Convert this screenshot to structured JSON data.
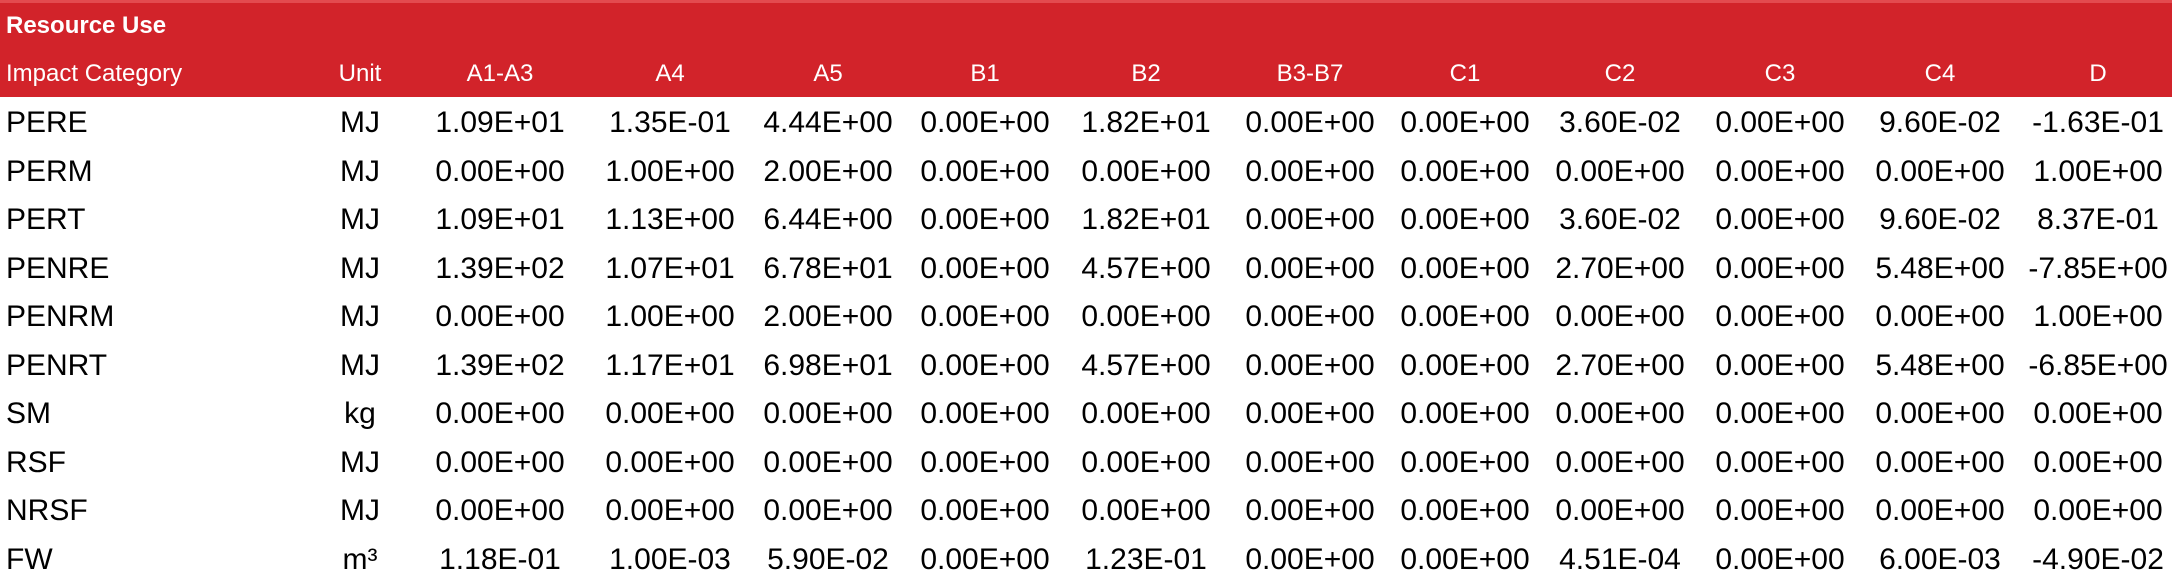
{
  "section_title": "Resource Use",
  "headers": [
    "Impact Category",
    "Unit",
    "A1-A3",
    "A4",
    "A5",
    "B1",
    "B2",
    "B3-B7",
    "C1",
    "C2",
    "C3",
    "C4",
    "D"
  ],
  "rows": [
    {
      "name": "PERE",
      "unit": "MJ",
      "values": [
        "1.09E+01",
        "1.35E-01",
        "4.44E+00",
        "0.00E+00",
        "1.82E+01",
        "0.00E+00",
        "0.00E+00",
        "3.60E-02",
        "0.00E+00",
        "9.60E-02",
        "-1.63E-01"
      ]
    },
    {
      "name": "PERM",
      "unit": "MJ",
      "values": [
        "0.00E+00",
        "1.00E+00",
        "2.00E+00",
        "0.00E+00",
        "0.00E+00",
        "0.00E+00",
        "0.00E+00",
        "0.00E+00",
        "0.00E+00",
        "0.00E+00",
        "1.00E+00"
      ]
    },
    {
      "name": "PERT",
      "unit": "MJ",
      "values": [
        "1.09E+01",
        "1.13E+00",
        "6.44E+00",
        "0.00E+00",
        "1.82E+01",
        "0.00E+00",
        "0.00E+00",
        "3.60E-02",
        "0.00E+00",
        "9.60E-02",
        "8.37E-01"
      ]
    },
    {
      "name": "PENRE",
      "unit": "MJ",
      "values": [
        "1.39E+02",
        "1.07E+01",
        "6.78E+01",
        "0.00E+00",
        "4.57E+00",
        "0.00E+00",
        "0.00E+00",
        "2.70E+00",
        "0.00E+00",
        "5.48E+00",
        "-7.85E+00"
      ]
    },
    {
      "name": "PENRM",
      "unit": "MJ",
      "values": [
        "0.00E+00",
        "1.00E+00",
        "2.00E+00",
        "0.00E+00",
        "0.00E+00",
        "0.00E+00",
        "0.00E+00",
        "0.00E+00",
        "0.00E+00",
        "0.00E+00",
        "1.00E+00"
      ]
    },
    {
      "name": "PENRT",
      "unit": "MJ",
      "values": [
        "1.39E+02",
        "1.17E+01",
        "6.98E+01",
        "0.00E+00",
        "4.57E+00",
        "0.00E+00",
        "0.00E+00",
        "2.70E+00",
        "0.00E+00",
        "5.48E+00",
        "-6.85E+00"
      ]
    },
    {
      "name": "SM",
      "unit": "kg",
      "values": [
        "0.00E+00",
        "0.00E+00",
        "0.00E+00",
        "0.00E+00",
        "0.00E+00",
        "0.00E+00",
        "0.00E+00",
        "0.00E+00",
        "0.00E+00",
        "0.00E+00",
        "0.00E+00"
      ]
    },
    {
      "name": "RSF",
      "unit": "MJ",
      "values": [
        "0.00E+00",
        "0.00E+00",
        "0.00E+00",
        "0.00E+00",
        "0.00E+00",
        "0.00E+00",
        "0.00E+00",
        "0.00E+00",
        "0.00E+00",
        "0.00E+00",
        "0.00E+00"
      ]
    },
    {
      "name": "NRSF",
      "unit": "MJ",
      "values": [
        "0.00E+00",
        "0.00E+00",
        "0.00E+00",
        "0.00E+00",
        "0.00E+00",
        "0.00E+00",
        "0.00E+00",
        "0.00E+00",
        "0.00E+00",
        "0.00E+00",
        "0.00E+00"
      ]
    },
    {
      "name": "FW",
      "unit": "m³",
      "values": [
        "1.18E-01",
        "1.00E-03",
        "5.90E-02",
        "0.00E+00",
        "1.23E-01",
        "0.00E+00",
        "0.00E+00",
        "4.51E-04",
        "0.00E+00",
        "6.00E-03",
        "-4.90E-02"
      ]
    }
  ]
}
